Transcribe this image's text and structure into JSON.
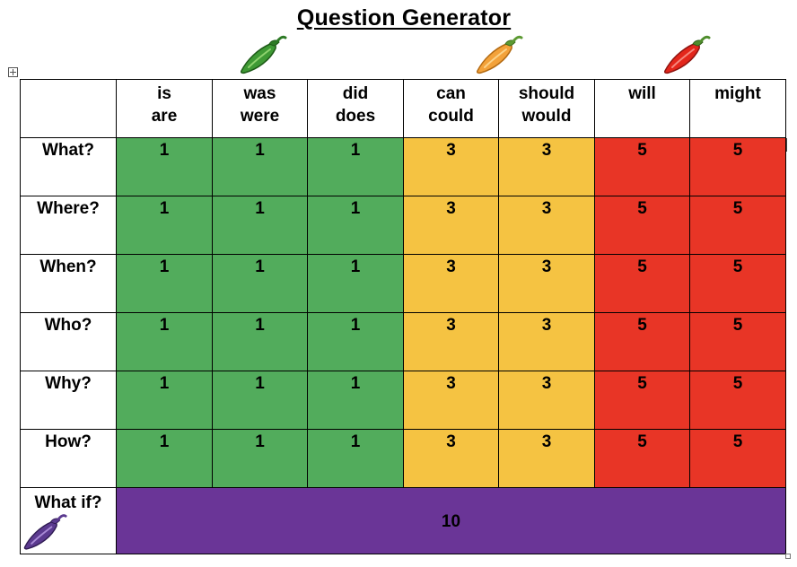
{
  "title": "Question Generator",
  "colors": {
    "green": "#52ac5c",
    "yellow": "#f5c342",
    "red": "#e83526",
    "purple": "#6a3597"
  },
  "peppers": [
    "green-chilli-icon",
    "orange-chilli-icon",
    "red-chilli-icon",
    "purple-chilli-icon"
  ],
  "columns": [
    {
      "line1": "is",
      "line2": "are"
    },
    {
      "line1": "was",
      "line2": "were"
    },
    {
      "line1": "did",
      "line2": "does"
    },
    {
      "line1": "can",
      "line2": "could"
    },
    {
      "line1": "should",
      "line2": "would"
    },
    {
      "line1": "will",
      "line2": ""
    },
    {
      "line1": "might",
      "line2": ""
    }
  ],
  "rows": [
    {
      "label": "What?",
      "values": [
        "1",
        "1",
        "1",
        "3",
        "3",
        "5",
        "5"
      ]
    },
    {
      "label": "Where?",
      "values": [
        "1",
        "1",
        "1",
        "3",
        "3",
        "5",
        "5"
      ]
    },
    {
      "label": "When?",
      "values": [
        "1",
        "1",
        "1",
        "3",
        "3",
        "5",
        "5"
      ]
    },
    {
      "label": "Who?",
      "values": [
        "1",
        "1",
        "1",
        "3",
        "3",
        "5",
        "5"
      ]
    },
    {
      "label": "Why?",
      "values": [
        "1",
        "1",
        "1",
        "3",
        "3",
        "5",
        "5"
      ]
    },
    {
      "label": "How?",
      "values": [
        "1",
        "1",
        "1",
        "3",
        "3",
        "5",
        "5"
      ]
    }
  ],
  "what_if": {
    "label": "What if?",
    "value": "10"
  }
}
